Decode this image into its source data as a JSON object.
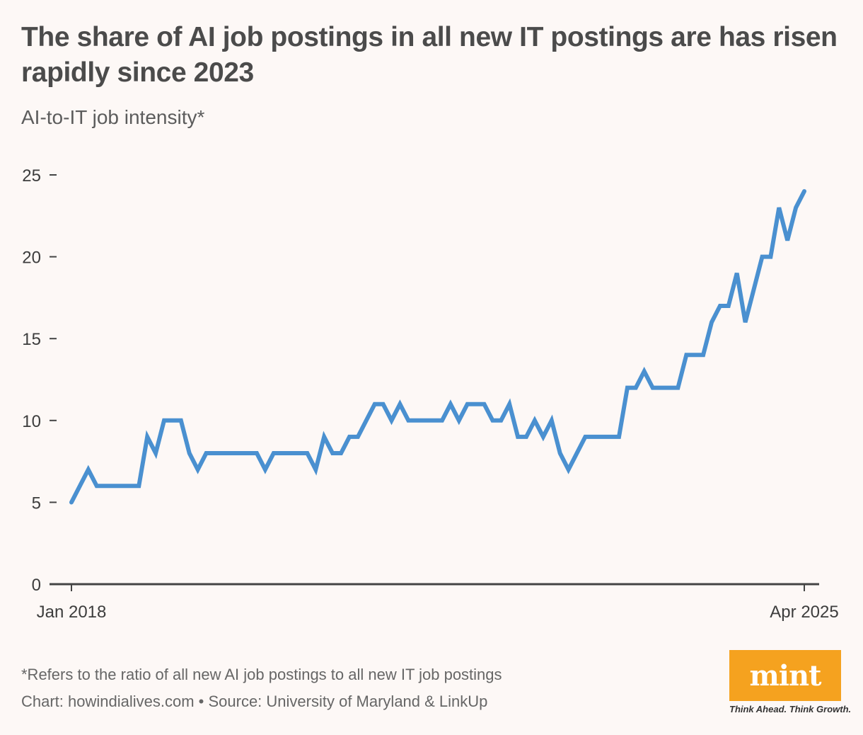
{
  "title": "The share of AI job postings in all new IT postings are has risen rapidly since 2023",
  "subtitle": "AI-to-IT job intensity*",
  "footnote": "*Refers to the ratio of all new AI job postings to all new IT job postings",
  "credit": "Chart: howindialives.com • Source: University of Maryland & LinkUp",
  "logo": {
    "text": "mint",
    "tagline": "Think Ahead. Think Growth.",
    "color": "#f5a21f"
  },
  "chart_data": {
    "type": "line",
    "title": "The share of AI job postings in all new IT postings are has risen rapidly since 2023",
    "subtitle": "AI-to-IT job intensity*",
    "ylabel": "AI-to-IT job intensity*",
    "ylim": [
      0,
      25
    ],
    "yticks": [
      0,
      5,
      10,
      15,
      20,
      25
    ],
    "xlim": [
      "Jan 2018",
      "Apr 2025"
    ],
    "xticks": [
      "Jan 2018",
      "Apr 2025"
    ],
    "grid": false,
    "line_color": "#4a90d0",
    "series": [
      {
        "values": [
          5,
          6,
          7,
          6,
          6,
          6,
          6,
          6,
          6,
          9,
          8,
          10,
          10,
          10,
          8,
          7,
          8,
          8,
          8,
          8,
          8,
          8,
          8,
          7,
          8,
          8,
          8,
          8,
          8,
          7,
          9,
          8,
          8,
          9,
          9,
          10,
          11,
          11,
          10,
          11,
          10,
          10,
          10,
          10,
          10,
          11,
          10,
          11,
          11,
          11,
          10,
          10,
          11,
          9,
          9,
          10,
          9,
          10,
          8,
          7,
          8,
          9,
          9,
          9,
          9,
          9,
          12,
          12,
          13,
          12,
          12,
          12,
          12,
          14,
          14,
          14,
          16,
          17,
          17,
          19,
          16,
          18,
          20,
          20,
          23,
          21,
          23,
          24
        ]
      }
    ]
  }
}
